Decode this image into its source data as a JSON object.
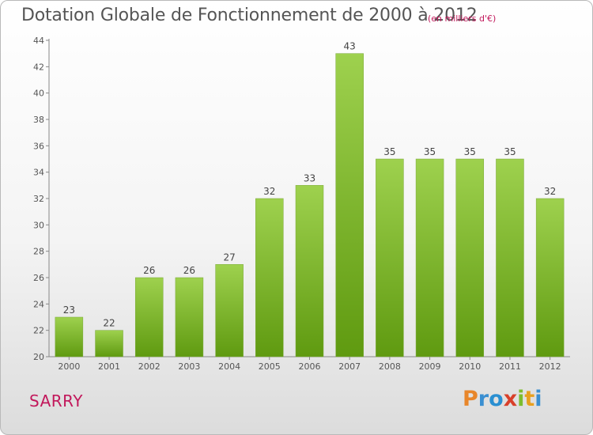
{
  "chart_data": {
    "type": "bar",
    "title": "Dotation Globale de Fonctionnement de 2000 à 2012",
    "subtitle": "(en milliers d'€)",
    "categories": [
      "2000",
      "2001",
      "2002",
      "2003",
      "2004",
      "2005",
      "2006",
      "2007",
      "2008",
      "2009",
      "2010",
      "2011",
      "2012"
    ],
    "values": [
      23,
      22,
      26,
      26,
      27,
      32,
      33,
      43,
      35,
      35,
      35,
      35,
      32
    ],
    "ylim": [
      20,
      44
    ],
    "yticks": [
      20,
      22,
      24,
      26,
      28,
      30,
      32,
      34,
      36,
      38,
      40,
      42,
      44
    ],
    "grid": false,
    "bar_color_top": "#9ed14e",
    "bar_color_bottom": "#5f9a10"
  },
  "commune": "SARRY",
  "logo": {
    "letters": [
      "P",
      "r",
      "o",
      "x",
      "i",
      "t",
      "i"
    ],
    "colors": [
      "#e8862a",
      "#3a8fd1",
      "#2a8fd1",
      "#d8402a",
      "#7cbd2e",
      "#e8a020",
      "#3a8fd1"
    ]
  }
}
